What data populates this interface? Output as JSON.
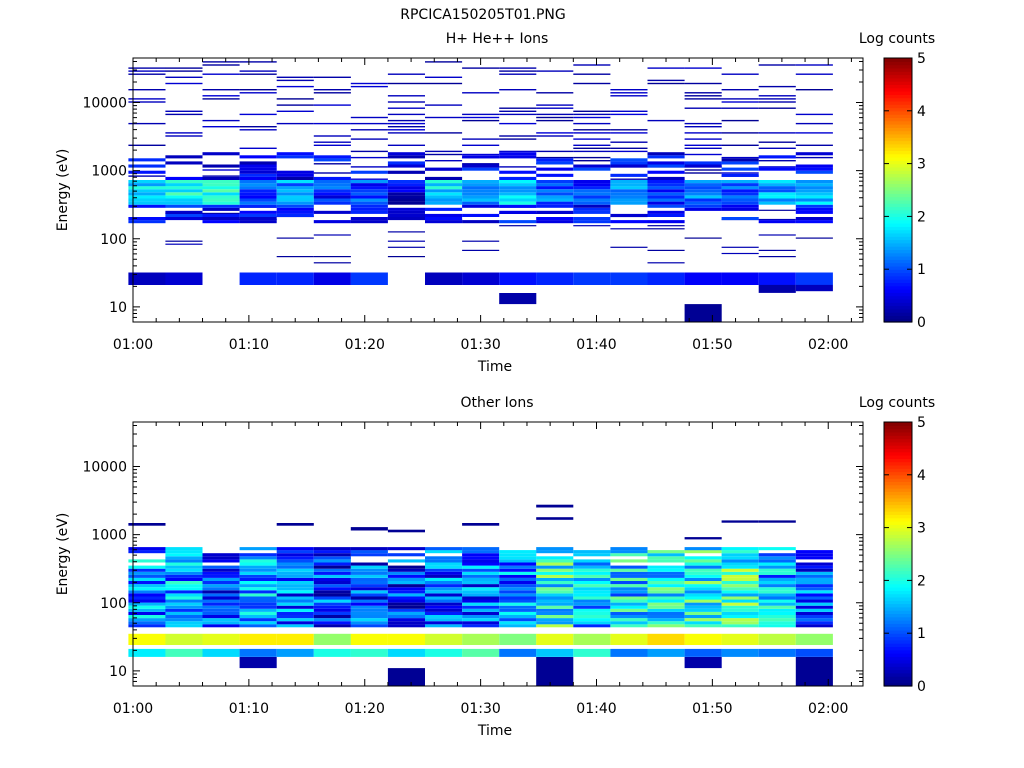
{
  "figure": {
    "filename": "RPCICA150205T01.PNG",
    "colorbar_label": "Log counts",
    "colormap": [
      "#00007f",
      "#0000ff",
      "#00ffff",
      "#ffff00",
      "#ff0000",
      "#7f0000"
    ]
  },
  "chart_data": [
    {
      "type": "heatmap",
      "title": "H+ He++ Ions",
      "xlabel": "Time",
      "ylabel": "Energy (eV)",
      "x_ticks": [
        "01:00",
        "01:10",
        "01:20",
        "01:30",
        "01:40",
        "01:50",
        "02:00"
      ],
      "y_ticks": [
        "10",
        "100",
        "1000",
        "10000"
      ],
      "y_scale": "log",
      "ylim": [
        6,
        45000
      ],
      "xlim": [
        "01:00",
        "02:03"
      ],
      "colorbar_ticks": [
        "0",
        "1",
        "2",
        "3",
        "4",
        "5"
      ],
      "colorbar_range": [
        0,
        5
      ],
      "time_bins_min": [
        1.2,
        4.4,
        7.6,
        10.8,
        14.0,
        17.2,
        20.4,
        23.6,
        26.8,
        30.0,
        33.2,
        36.4,
        39.6,
        42.8,
        46.0,
        49.2,
        52.4,
        55.6,
        58.8
      ],
      "bin_width_min": 3.2,
      "dense_band": {
        "low_eV": 300,
        "high_eV": 700,
        "log_counts": [
          1.8,
          2.0,
          2.2,
          1.2,
          1.5,
          1.0,
          1.1,
          0.7,
          1.9,
          1.4,
          1.8,
          1.3,
          1.0,
          1.4,
          1.1,
          1.3,
          1.2,
          1.6,
          1.8
        ]
      },
      "low_band": {
        "low_eV": 21,
        "high_eV": 32,
        "log_counts": [
          0.3,
          0.4,
          null,
          0.8,
          0.8,
          0.5,
          0.9,
          null,
          0.3,
          0.4,
          0.7,
          0.8,
          0.9,
          0.9,
          0.8,
          0.6,
          0.6,
          0.7,
          0.9
        ]
      },
      "extra_cells": [
        {
          "t": 33.2,
          "low_eV": 11,
          "high_eV": 16,
          "v": 0.2
        },
        {
          "t": 49.2,
          "low_eV": 6,
          "high_eV": 11,
          "v": 0.1
        },
        {
          "t": 55.6,
          "low_eV": 16,
          "high_eV": 21,
          "v": 0.2
        },
        {
          "t": 58.8,
          "low_eV": 17,
          "high_eV": 21,
          "v": 0.3
        }
      ]
    },
    {
      "type": "heatmap",
      "title": "Other Ions",
      "xlabel": "Time",
      "ylabel": "Energy (eV)",
      "x_ticks": [
        "01:00",
        "01:10",
        "01:20",
        "01:30",
        "01:40",
        "01:50",
        "02:00"
      ],
      "y_ticks": [
        "10",
        "100",
        "1000",
        "10000"
      ],
      "y_scale": "log",
      "ylim": [
        6,
        45000
      ],
      "xlim": [
        "01:00",
        "02:03"
      ],
      "colorbar_ticks": [
        "0",
        "1",
        "2",
        "3",
        "4",
        "5"
      ],
      "colorbar_range": [
        0,
        5
      ],
      "time_bins_min": [
        1.2,
        4.4,
        7.6,
        10.8,
        14.0,
        17.2,
        20.4,
        23.6,
        26.8,
        30.0,
        33.2,
        36.4,
        39.6,
        42.8,
        46.0,
        49.2,
        52.4,
        55.6,
        58.8
      ],
      "bin_width_min": 3.2,
      "peak_band": {
        "low_eV": 24,
        "high_eV": 35,
        "log_counts": [
          3.1,
          2.9,
          3.0,
          3.2,
          3.2,
          2.6,
          3.1,
          3.1,
          2.9,
          2.7,
          2.5,
          3.0,
          2.7,
          3.0,
          3.3,
          3.1,
          3.0,
          2.8,
          2.6
        ]
      },
      "lower_band": {
        "low_eV": 16,
        "high_eV": 21,
        "log_counts": [
          1.8,
          2.2,
          1.7,
          1.2,
          1.4,
          2.0,
          2.1,
          1.7,
          2.0,
          2.3,
          1.2,
          1.6,
          2.1,
          1.2,
          1.4,
          1.1,
          1.3,
          1.2,
          1.0
        ]
      },
      "mid_band": {
        "low_eV": 40,
        "high_eV": 600,
        "log_counts": [
          1.4,
          1.5,
          1.1,
          1.6,
          1.2,
          1.0,
          1.0,
          0.9,
          1.1,
          1.2,
          1.4,
          2.1,
          1.6,
          1.8,
          1.9,
          2.0,
          2.2,
          1.6,
          1.1
        ]
      },
      "extra_cells": [
        {
          "t": 1.2,
          "low_eV": 1350,
          "high_eV": 1480,
          "v": 0.1
        },
        {
          "t": 14.0,
          "low_eV": 1350,
          "high_eV": 1480,
          "v": 0.1
        },
        {
          "t": 20.4,
          "low_eV": 1150,
          "high_eV": 1290,
          "v": 0.1
        },
        {
          "t": 23.6,
          "low_eV": 1080,
          "high_eV": 1180,
          "v": 0.1
        },
        {
          "t": 30.0,
          "low_eV": 1350,
          "high_eV": 1480,
          "v": 0.1
        },
        {
          "t": 36.4,
          "low_eV": 2500,
          "high_eV": 2750,
          "v": 0.1
        },
        {
          "t": 36.4,
          "low_eV": 1650,
          "high_eV": 1800,
          "v": 0.1
        },
        {
          "t": 49.2,
          "low_eV": 850,
          "high_eV": 920,
          "v": 0.1
        },
        {
          "t": 52.4,
          "low_eV": 1500,
          "high_eV": 1620,
          "v": 0.1
        },
        {
          "t": 55.6,
          "low_eV": 1500,
          "high_eV": 1620,
          "v": 0.1
        },
        {
          "t": 10.8,
          "low_eV": 11,
          "high_eV": 16,
          "v": 0.2
        },
        {
          "t": 23.6,
          "low_eV": 6,
          "high_eV": 11,
          "v": 0.1
        },
        {
          "t": 36.4,
          "low_eV": 6,
          "high_eV": 16,
          "v": 0.1
        },
        {
          "t": 49.2,
          "low_eV": 11,
          "high_eV": 16,
          "v": 0.2
        },
        {
          "t": 58.8,
          "low_eV": 6,
          "high_eV": 16,
          "v": 0.1
        }
      ]
    }
  ]
}
